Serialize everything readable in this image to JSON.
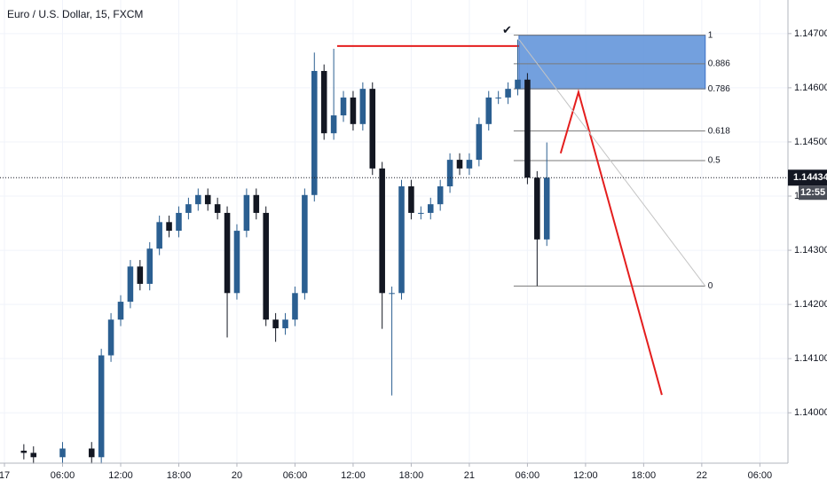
{
  "chart_data": {
    "type": "candlestick",
    "title": "Euro / U.S. Dollar, 15, FXCM",
    "x": [
      2,
      3,
      6,
      9,
      10,
      11,
      12,
      13,
      14,
      15,
      16,
      17,
      18,
      19,
      20,
      21,
      22,
      23,
      24,
      25,
      26,
      27,
      28,
      29,
      30,
      31,
      32,
      33,
      34,
      35,
      36,
      37,
      38,
      39,
      40,
      41,
      42,
      43,
      44,
      45,
      46,
      47,
      48,
      49,
      50,
      51,
      52,
      53,
      54,
      55,
      56
    ],
    "open": [
      1.1393,
      1.13926,
      1.13918,
      1.13934,
      1.13918,
      1.14106,
      1.14172,
      1.14205,
      1.1427,
      1.14238,
      1.14303,
      1.14352,
      1.14336,
      1.14369,
      1.14385,
      1.14402,
      1.14385,
      1.14369,
      1.14221,
      1.14336,
      1.14402,
      1.14369,
      1.14172,
      1.14156,
      1.14172,
      1.14221,
      1.14402,
      1.14631,
      1.14516,
      1.14549,
      1.14582,
      1.14533,
      1.14598,
      1.14451,
      1.14221,
      1.14221,
      1.14418,
      1.14369,
      1.14369,
      1.14385,
      1.14418,
      1.14467,
      1.14451,
      1.14467,
      1.14533,
      1.14582,
      1.14582,
      1.14598,
      1.14615,
      1.14434,
      1.1432
    ],
    "high": [
      1.13942,
      1.13938,
      1.13946,
      1.13946,
      1.14118,
      1.14184,
      1.14217,
      1.14282,
      1.14282,
      1.14315,
      1.14364,
      1.14364,
      1.14381,
      1.14397,
      1.14414,
      1.14414,
      1.14397,
      1.14381,
      1.14348,
      1.14414,
      1.14414,
      1.14381,
      1.14184,
      1.14184,
      1.14233,
      1.14414,
      1.14665,
      1.14643,
      1.14672,
      1.14594,
      1.14594,
      1.1461,
      1.1461,
      1.14463,
      1.14233,
      1.1443,
      1.1443,
      1.14381,
      1.14397,
      1.1443,
      1.14479,
      1.14479,
      1.14479,
      1.14545,
      1.14594,
      1.14594,
      1.1461,
      1.14689,
      1.14627,
      1.14446,
      1.14499
    ],
    "low": [
      1.13914,
      1.13906,
      1.13906,
      1.13906,
      1.13906,
      1.14094,
      1.1416,
      1.14193,
      1.14226,
      1.14226,
      1.14291,
      1.14324,
      1.14324,
      1.14357,
      1.14373,
      1.14373,
      1.14357,
      1.14139,
      1.14209,
      1.14324,
      1.14357,
      1.1416,
      1.14131,
      1.14144,
      1.1416,
      1.14209,
      1.1439,
      1.14504,
      1.14504,
      1.14537,
      1.14521,
      1.14521,
      1.14439,
      1.14155,
      1.14032,
      1.14209,
      1.14357,
      1.14357,
      1.14357,
      1.14373,
      1.14406,
      1.14439,
      1.14439,
      1.14455,
      1.14521,
      1.1457,
      1.1457,
      1.14586,
      1.14422,
      1.14234,
      1.14308
    ],
    "close": [
      1.13926,
      1.13918,
      1.13934,
      1.13918,
      1.14106,
      1.14172,
      1.14205,
      1.1427,
      1.14238,
      1.14303,
      1.14352,
      1.14336,
      1.14369,
      1.14385,
      1.14402,
      1.14385,
      1.14369,
      1.14221,
      1.14336,
      1.14402,
      1.14369,
      1.14172,
      1.14156,
      1.14172,
      1.14221,
      1.14402,
      1.14631,
      1.14516,
      1.14549,
      1.14582,
      1.14533,
      1.14598,
      1.14451,
      1.14221,
      1.14221,
      1.14418,
      1.14369,
      1.14369,
      1.14385,
      1.14418,
      1.14467,
      1.14451,
      1.14467,
      1.14533,
      1.14582,
      1.14582,
      1.14598,
      1.14615,
      1.14434,
      1.1432,
      1.14434
    ],
    "up_color": "#2b5f91",
    "down_color": "#131722",
    "xlim": [
      -0.46,
      80.9
    ],
    "ylim": [
      1.13907,
      1.14762
    ],
    "xticks": [
      {
        "value": 0,
        "label": "17"
      },
      {
        "value": 6,
        "label": "06:00"
      },
      {
        "value": 12,
        "label": "12:00"
      },
      {
        "value": 18,
        "label": "18:00"
      },
      {
        "value": 24,
        "label": "20"
      },
      {
        "value": 30,
        "label": "06:00"
      },
      {
        "value": 36,
        "label": "12:00"
      },
      {
        "value": 42,
        "label": "18:00"
      },
      {
        "value": 48,
        "label": "21"
      },
      {
        "value": 54,
        "label": "06:00"
      },
      {
        "value": 60,
        "label": "12:00"
      },
      {
        "value": 66,
        "label": "18:00"
      },
      {
        "value": 72,
        "label": "22"
      },
      {
        "value": 78,
        "label": "06:00"
      }
    ],
    "yticks": [
      {
        "value": 1.14,
        "label": "1.14000"
      },
      {
        "value": 1.141,
        "label": "1.14100"
      },
      {
        "value": 1.142,
        "label": "1.14200"
      },
      {
        "value": 1.143,
        "label": "1.14300"
      },
      {
        "value": 1.144,
        "label": "1.14400"
      },
      {
        "value": 1.145,
        "label": "1.14500"
      },
      {
        "value": 1.146,
        "label": "1.14600"
      },
      {
        "value": 1.147,
        "label": "1.14700"
      }
    ],
    "grid": true,
    "last_price": 1.14434,
    "countdown": "12:55",
    "fib": {
      "x": [
        52.58,
        72.36
      ],
      "high": 1.14697,
      "low": 1.14234,
      "levels": [
        1,
        0.886,
        0.786,
        0.618,
        0.5,
        0
      ],
      "zone": [
        0.786,
        1
      ],
      "zone_x": [
        53.13,
        72.36
      ],
      "color": "#7a7a7a",
      "zone_color": "#5b8fd8"
    },
    "lines": [
      {
        "color": "#e41e1e",
        "x": [
          34.35,
          53.13
        ],
        "y": [
          1.14677,
          1.14677
        ]
      },
      {
        "color": "#e41e1e",
        "x": [
          57.43,
          59.27,
          67.88
        ],
        "y": [
          1.14479,
          1.14592,
          1.14033
        ]
      },
      {
        "color": "#c4c4c4",
        "x": [
          53.13,
          72.36
        ],
        "y": [
          1.14689,
          1.14234
        ]
      }
    ],
    "annotations": [
      {
        "text": "✔",
        "x": 51.9,
        "y": 1.14705
      }
    ]
  }
}
